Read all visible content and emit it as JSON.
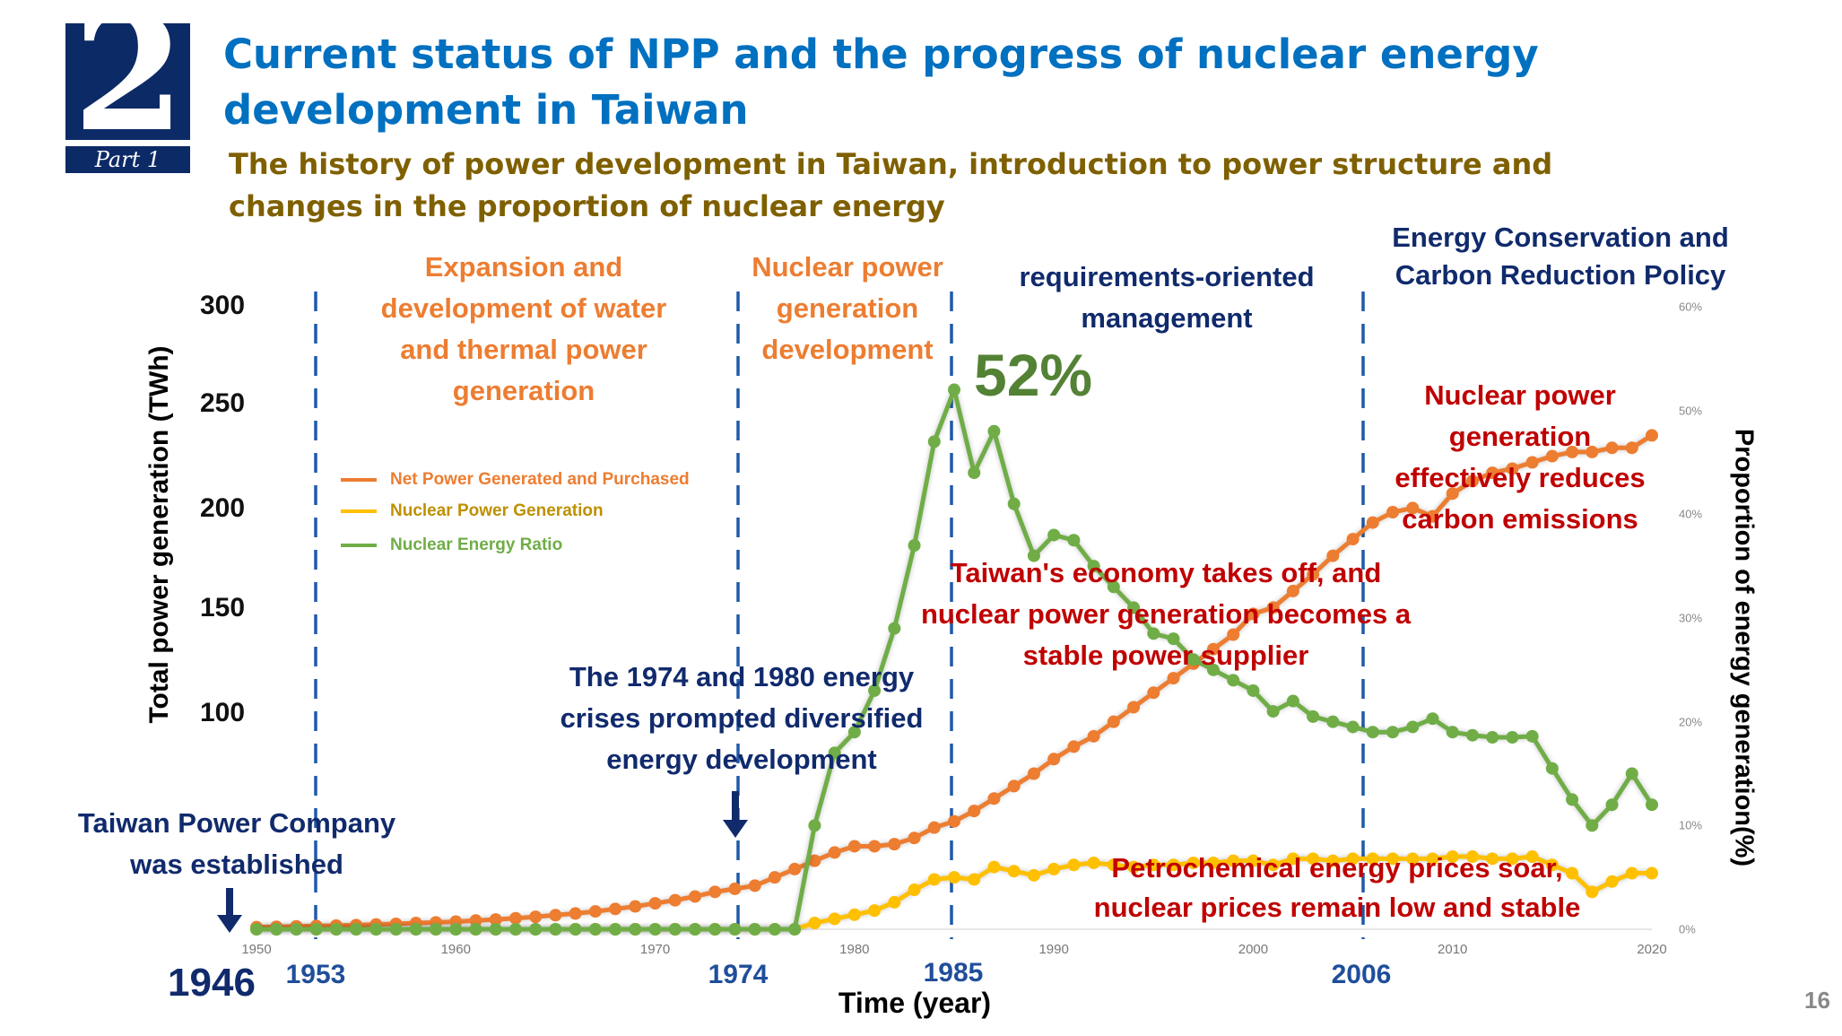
{
  "header": {
    "section_number": "2",
    "part_label": "Part 1",
    "title_lines": [
      "Current status of NPP and the progress of nuclear energy",
      "development in Taiwan"
    ],
    "subtitle_lines": [
      "The history of power development in Taiwan, introduction to power structure and",
      "changes in the proportion of nuclear energy"
    ]
  },
  "annotations": {
    "phase1": [
      "Expansion and",
      "development of water",
      "and thermal power",
      "generation"
    ],
    "phase2": [
      "Nuclear power",
      "generation",
      "development"
    ],
    "phase3": [
      "requirements-oriented",
      "management"
    ],
    "phase4": [
      "Energy Conservation and",
      "Carbon Reduction Policy"
    ],
    "peak": "52%",
    "reduces": [
      "Nuclear power",
      "generation",
      "effectively reduces",
      "carbon emissions"
    ],
    "economy": [
      "Taiwan's economy takes off, and",
      "nuclear power generation becomes a",
      "stable power supplier"
    ],
    "crises": [
      "The 1974 and 1980 energy",
      "crises prompted diversified",
      "energy development"
    ],
    "taipower": [
      "Taiwan Power Company",
      "was established"
    ],
    "petro": [
      "Petrochemical energy prices soar,",
      "nuclear prices remain low and stable"
    ],
    "milestones": [
      "1946",
      "1953",
      "1974",
      "1985",
      "2006"
    ]
  },
  "page_number": "16",
  "colors": {
    "net": "#ed7d31",
    "nuclear": "#ffc000",
    "ratio": "#70ad47",
    "navy": "#102a6c",
    "red": "#c00000"
  },
  "chart_data": {
    "type": "line",
    "xlabel": "Time (year)",
    "ylabel": "Total power generation (TWh)",
    "ylabel_right": "Proportion of energy generation(%)",
    "x_ticks": [
      "1950",
      "1960",
      "1970",
      "1980",
      "1990",
      "2000",
      "2010",
      "2020"
    ],
    "y_ticks_left": [
      "300",
      "250",
      "200",
      "150",
      "100"
    ],
    "y_ticks_right": [
      "0%",
      "10%",
      "20%",
      "30%",
      "40%",
      "50%",
      "60%"
    ],
    "xlim": [
      1950,
      2020
    ],
    "ylim_left": [
      0,
      300
    ],
    "ylim_right": [
      0,
      60
    ],
    "legend": [
      "Net Power Generated and Purchased",
      "Nuclear Power Generation",
      "Nuclear Energy Ratio"
    ],
    "legend_position": "top-left",
    "x": [
      1950,
      1951,
      1952,
      1953,
      1954,
      1955,
      1956,
      1957,
      1958,
      1959,
      1960,
      1961,
      1962,
      1963,
      1964,
      1965,
      1966,
      1967,
      1968,
      1969,
      1970,
      1971,
      1972,
      1973,
      1974,
      1975,
      1976,
      1977,
      1978,
      1979,
      1980,
      1981,
      1982,
      1983,
      1984,
      1985,
      1986,
      1987,
      1988,
      1989,
      1990,
      1991,
      1992,
      1993,
      1994,
      1995,
      1996,
      1997,
      1998,
      1999,
      2000,
      2001,
      2002,
      2003,
      2004,
      2005,
      2006,
      2007,
      2008,
      2009,
      2010,
      2011,
      2012,
      2013,
      2014,
      2015,
      2016,
      2017,
      2018,
      2019,
      2020
    ],
    "series": [
      {
        "name": "Net Power Generated and Purchased",
        "axis": "left",
        "values": [
          1,
          1.2,
          1.4,
          1.6,
          1.8,
          2,
          2.3,
          2.6,
          3,
          3.3,
          3.7,
          4.2,
          4.7,
          5.3,
          6,
          6.8,
          7.6,
          8.6,
          9.8,
          11,
          12.5,
          14,
          15.8,
          18,
          19.5,
          21,
          25,
          29,
          33,
          37,
          40,
          40,
          41,
          44,
          49,
          52,
          57,
          63,
          69,
          75,
          82,
          88,
          93,
          100,
          107,
          114,
          121,
          128,
          135,
          142,
          152,
          155,
          163,
          171,
          180,
          188,
          196,
          201,
          203,
          199,
          210,
          216,
          220,
          222,
          225,
          228,
          230,
          230,
          232,
          232,
          238
        ]
      },
      {
        "name": "Nuclear Power Generation",
        "axis": "left",
        "values": [
          0,
          0,
          0,
          0,
          0,
          0,
          0,
          0,
          0,
          0,
          0,
          0,
          0,
          0,
          0,
          0,
          0,
          0,
          0,
          0,
          0,
          0,
          0,
          0,
          0,
          0,
          0,
          0,
          3,
          5,
          7,
          9,
          13,
          19,
          24,
          25,
          24,
          30,
          28,
          26,
          29,
          31,
          32,
          31,
          30,
          31,
          31,
          32,
          32,
          33,
          33,
          31,
          34,
          34,
          33,
          34,
          34,
          34,
          34,
          34,
          35,
          35,
          34,
          34,
          35,
          31,
          27,
          18,
          23,
          27,
          27
        ]
      },
      {
        "name": "Nuclear Energy Ratio",
        "axis": "right",
        "values": [
          0,
          0,
          0,
          0,
          0,
          0,
          0,
          0,
          0,
          0,
          0,
          0,
          0,
          0,
          0,
          0,
          0,
          0,
          0,
          0,
          0,
          0,
          0,
          0,
          0,
          0,
          0,
          0,
          10,
          17,
          19,
          23,
          29,
          37,
          47,
          52,
          44,
          48,
          41,
          36,
          38,
          37.5,
          35,
          33,
          31,
          28.5,
          28,
          26,
          25,
          24,
          23,
          21,
          22,
          20.5,
          20,
          19.5,
          19,
          19,
          19.5,
          20.3,
          19,
          18.7,
          18.5,
          18.5,
          18.6,
          15.5,
          12.5,
          10,
          12,
          15,
          12
        ]
      }
    ]
  }
}
